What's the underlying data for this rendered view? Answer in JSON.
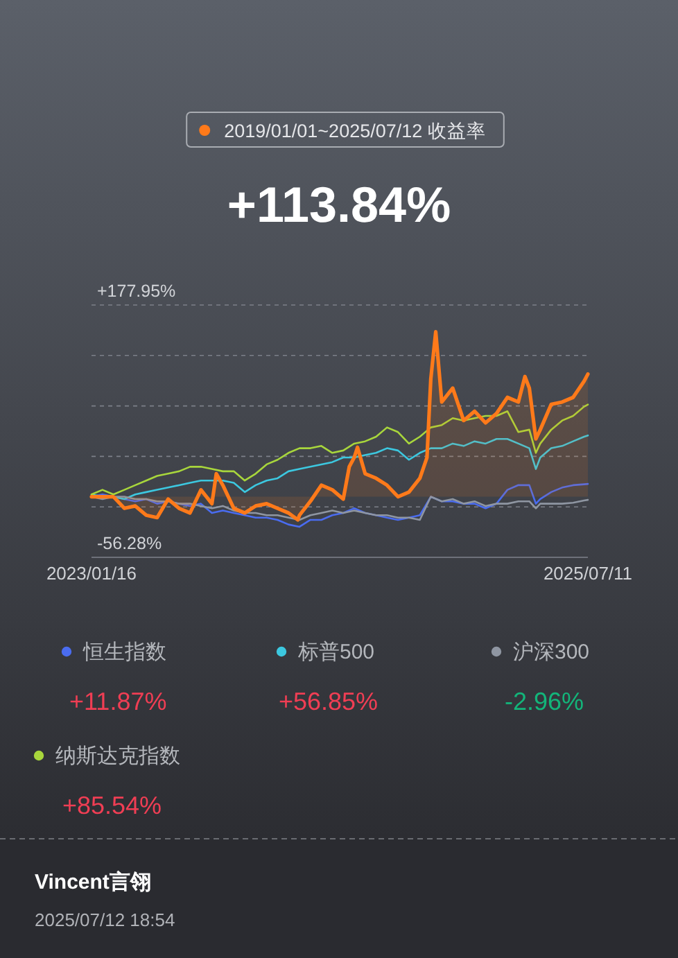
{
  "chart_data": {
    "type": "line",
    "subtitle": "2019/01/01~2025/07/12 收益率",
    "title": "+113.84%",
    "xlim": [
      "2023-01-16",
      "2025-07-11"
    ],
    "xticks": [
      {
        "value": "2023-01-16",
        "label": "2023/01/16"
      },
      {
        "value": "2025-07-11",
        "label": "2025/07/11"
      }
    ],
    "ylim": [
      -56.28,
      177.95
    ],
    "yticks": [
      {
        "value": 177.95,
        "label": "+177.95%"
      },
      {
        "value": 131.1,
        "label": null
      },
      {
        "value": 84.26,
        "label": null
      },
      {
        "value": 37.41,
        "label": null
      },
      {
        "value": -9.43,
        "label": null
      },
      {
        "value": -56.28,
        "label": "-56.28%"
      }
    ],
    "grid": "y",
    "legend": "bottom",
    "marker": "none",
    "line_style": "solid",
    "series": [
      {
        "name": "恒生指数",
        "color": "#4a6cf0",
        "x": [
          "2023-01-16",
          "2023-02-05",
          "2023-02-25",
          "2023-03-17",
          "2023-04-06",
          "2023-04-26",
          "2023-05-16",
          "2023-06-05",
          "2023-06-25",
          "2023-07-15",
          "2023-08-04",
          "2023-08-24",
          "2023-09-13",
          "2023-10-03",
          "2023-10-23",
          "2023-11-12",
          "2023-12-02",
          "2023-12-22",
          "2024-01-11",
          "2024-01-31",
          "2024-02-20",
          "2024-03-11",
          "2024-03-31",
          "2024-04-20",
          "2024-05-10",
          "2024-05-30",
          "2024-06-19",
          "2024-07-09",
          "2024-07-29",
          "2024-08-18",
          "2024-09-07",
          "2024-09-27",
          "2024-10-17",
          "2024-11-06",
          "2024-11-26",
          "2024-12-16",
          "2025-01-05",
          "2025-01-25",
          "2025-02-14",
          "2025-03-06",
          "2025-03-26",
          "2025-04-07",
          "2025-04-15",
          "2025-05-05",
          "2025-05-25",
          "2025-06-14",
          "2025-07-04",
          "2025-07-11"
        ],
        "values": [
          0.0,
          2.1,
          0.0,
          -2.2,
          -4.3,
          -2.2,
          -6.5,
          -4.3,
          -6.5,
          -8.6,
          -6.5,
          -15.1,
          -12.9,
          -15.1,
          -17.2,
          -19.4,
          -19.4,
          -21.5,
          -25.8,
          -27.9,
          -21.5,
          -21.5,
          -17.2,
          -15.1,
          -10.8,
          -15.1,
          -17.2,
          -19.4,
          -21.5,
          -19.4,
          -17.2,
          0.0,
          -4.3,
          -4.3,
          -6.5,
          -6.5,
          -10.8,
          -6.5,
          6.4,
          10.8,
          10.7,
          -6.5,
          -2.2,
          4.3,
          8.5,
          10.7,
          11.5,
          11.87
        ]
      },
      {
        "name": "标普500",
        "color": "#3cc8e0",
        "x": [
          "2023-01-16",
          "2023-02-05",
          "2023-02-25",
          "2023-03-17",
          "2023-04-06",
          "2023-04-26",
          "2023-05-16",
          "2023-06-05",
          "2023-06-25",
          "2023-07-15",
          "2023-08-04",
          "2023-08-24",
          "2023-09-13",
          "2023-10-03",
          "2023-10-23",
          "2023-11-12",
          "2023-12-02",
          "2023-12-22",
          "2024-01-11",
          "2024-01-31",
          "2024-02-20",
          "2024-03-11",
          "2024-03-31",
          "2024-04-20",
          "2024-05-10",
          "2024-05-30",
          "2024-06-19",
          "2024-07-09",
          "2024-07-29",
          "2024-08-18",
          "2024-09-07",
          "2024-09-27",
          "2024-10-17",
          "2024-11-06",
          "2024-11-26",
          "2024-12-16",
          "2025-01-05",
          "2025-01-25",
          "2025-02-14",
          "2025-03-06",
          "2025-03-26",
          "2025-04-07",
          "2025-04-15",
          "2025-05-05",
          "2025-05-25",
          "2025-06-14",
          "2025-07-04",
          "2025-07-11"
        ],
        "values": [
          2.1,
          0.0,
          0.0,
          -2.2,
          2.1,
          4.3,
          6.4,
          8.5,
          10.7,
          12.9,
          15.0,
          15.0,
          15.0,
          12.9,
          4.3,
          10.7,
          15.0,
          17.1,
          23.6,
          25.7,
          27.8,
          30.0,
          32.1,
          36.4,
          36.4,
          38.6,
          40.7,
          45.0,
          42.9,
          34.3,
          40.7,
          45.0,
          45.0,
          49.3,
          47.1,
          51.4,
          49.3,
          53.6,
          53.6,
          49.3,
          45.0,
          25.7,
          36.4,
          45.0,
          47.1,
          51.4,
          55.7,
          56.85
        ]
      },
      {
        "name": "沪深300",
        "color": "#8f96a2",
        "x": [
          "2023-01-16",
          "2023-02-05",
          "2023-02-25",
          "2023-03-17",
          "2023-04-06",
          "2023-04-26",
          "2023-05-16",
          "2023-06-05",
          "2023-06-25",
          "2023-07-15",
          "2023-08-04",
          "2023-08-24",
          "2023-09-13",
          "2023-10-03",
          "2023-10-23",
          "2023-11-12",
          "2023-12-02",
          "2023-12-22",
          "2024-01-11",
          "2024-01-31",
          "2024-02-20",
          "2024-03-11",
          "2024-03-31",
          "2024-04-20",
          "2024-05-10",
          "2024-05-30",
          "2024-06-19",
          "2024-07-09",
          "2024-07-29",
          "2024-08-18",
          "2024-09-07",
          "2024-09-27",
          "2024-10-17",
          "2024-11-06",
          "2024-11-26",
          "2024-12-16",
          "2025-01-05",
          "2025-01-25",
          "2025-02-14",
          "2025-03-06",
          "2025-03-26",
          "2025-04-07",
          "2025-04-15",
          "2025-05-05",
          "2025-05-25",
          "2025-06-14",
          "2025-07-04",
          "2025-07-11"
        ],
        "values": [
          0.0,
          -2.2,
          0.0,
          0.0,
          -2.2,
          -2.2,
          -4.3,
          -4.3,
          -6.5,
          -6.5,
          -8.6,
          -10.8,
          -8.6,
          -12.9,
          -15.1,
          -15.1,
          -17.2,
          -17.2,
          -19.4,
          -21.5,
          -17.2,
          -15.1,
          -12.9,
          -15.1,
          -12.9,
          -15.1,
          -17.2,
          -17.2,
          -19.4,
          -19.4,
          -21.5,
          0.0,
          -4.3,
          -2.2,
          -6.5,
          -4.3,
          -8.6,
          -6.5,
          -6.5,
          -4.3,
          -4.3,
          -10.8,
          -6.5,
          -6.5,
          -6.5,
          -5.6,
          -3.5,
          -2.96
        ]
      },
      {
        "name": "纳斯达克指数",
        "color": "#a8d63c",
        "x": [
          "2023-01-16",
          "2023-02-05",
          "2023-02-25",
          "2023-03-17",
          "2023-04-06",
          "2023-04-26",
          "2023-05-16",
          "2023-06-05",
          "2023-06-25",
          "2023-07-15",
          "2023-08-04",
          "2023-08-24",
          "2023-09-13",
          "2023-10-03",
          "2023-10-23",
          "2023-11-12",
          "2023-12-02",
          "2023-12-22",
          "2024-01-11",
          "2024-01-31",
          "2024-02-20",
          "2024-03-11",
          "2024-03-31",
          "2024-04-20",
          "2024-05-10",
          "2024-05-30",
          "2024-06-19",
          "2024-07-09",
          "2024-07-29",
          "2024-08-18",
          "2024-09-07",
          "2024-09-27",
          "2024-10-17",
          "2024-11-06",
          "2024-11-26",
          "2024-12-16",
          "2025-01-05",
          "2025-01-25",
          "2025-02-14",
          "2025-03-06",
          "2025-03-26",
          "2025-04-07",
          "2025-04-15",
          "2025-05-05",
          "2025-05-25",
          "2025-06-14",
          "2025-07-04",
          "2025-07-11"
        ],
        "values": [
          2.1,
          6.4,
          2.1,
          6.4,
          10.7,
          15.0,
          19.3,
          21.4,
          23.6,
          27.8,
          27.8,
          25.7,
          23.6,
          23.6,
          15.0,
          21.4,
          30.0,
          34.3,
          40.7,
          45.0,
          45.0,
          47.1,
          40.7,
          42.9,
          49.3,
          51.4,
          55.7,
          64.3,
          60.0,
          49.3,
          55.7,
          64.3,
          66.5,
          72.9,
          70.7,
          72.9,
          75.0,
          75.0,
          79.3,
          60.0,
          62.2,
          40.7,
          49.3,
          62.2,
          70.7,
          75.0,
          83.6,
          85.54
        ]
      },
      {
        "type": "area",
        "color": "#ff7a1a",
        "x": [
          "2023-01-16",
          "2023-02-05",
          "2023-02-25",
          "2023-03-17",
          "2023-04-06",
          "2023-04-26",
          "2023-05-16",
          "2023-06-05",
          "2023-06-25",
          "2023-07-15",
          "2023-08-04",
          "2023-08-24",
          "2023-09-01",
          "2023-09-13",
          "2023-10-03",
          "2023-10-23",
          "2023-11-12",
          "2023-12-02",
          "2023-12-22",
          "2024-01-11",
          "2024-01-28",
          "2024-01-31",
          "2024-02-20",
          "2024-03-11",
          "2024-03-31",
          "2024-04-20",
          "2024-05-01",
          "2024-05-10",
          "2024-05-16",
          "2024-05-30",
          "2024-06-19",
          "2024-07-09",
          "2024-07-29",
          "2024-08-18",
          "2024-09-07",
          "2024-09-20",
          "2024-09-27",
          "2024-10-06",
          "2024-10-17",
          "2024-11-06",
          "2024-11-26",
          "2024-12-16",
          "2025-01-05",
          "2025-01-25",
          "2025-02-14",
          "2025-03-06",
          "2025-03-18",
          "2025-03-26",
          "2025-04-07",
          "2025-04-15",
          "2025-05-05",
          "2025-05-25",
          "2025-06-14",
          "2025-07-04",
          "2025-07-11"
        ],
        "values": [
          0.0,
          0.0,
          0.0,
          -10.8,
          -8.6,
          -17.2,
          -19.4,
          -2.2,
          -10.8,
          -15.1,
          6.4,
          -6.5,
          21.4,
          10.7,
          -10.8,
          -15.1,
          -8.6,
          -6.5,
          -10.8,
          -15.1,
          -21.5,
          -17.2,
          -4.3,
          10.7,
          6.4,
          -2.2,
          27.8,
          36.4,
          45.9,
          21.4,
          17.1,
          10.7,
          0.0,
          4.3,
          17.1,
          36.4,
          109.4,
          153.1,
          87.9,
          100.8,
          70.7,
          79.3,
          68.6,
          77.2,
          92.2,
          87.9,
          111.5,
          100.8,
          53.6,
          62.2,
          85.8,
          87.9,
          92.2,
          107.2,
          113.84
        ]
      }
    ],
    "annotations": [
      "+11.87%",
      "+56.85%",
      "-2.96%",
      "+85.54%",
      "Vincent言翎",
      "2025/07/12 18:54"
    ]
  }
}
